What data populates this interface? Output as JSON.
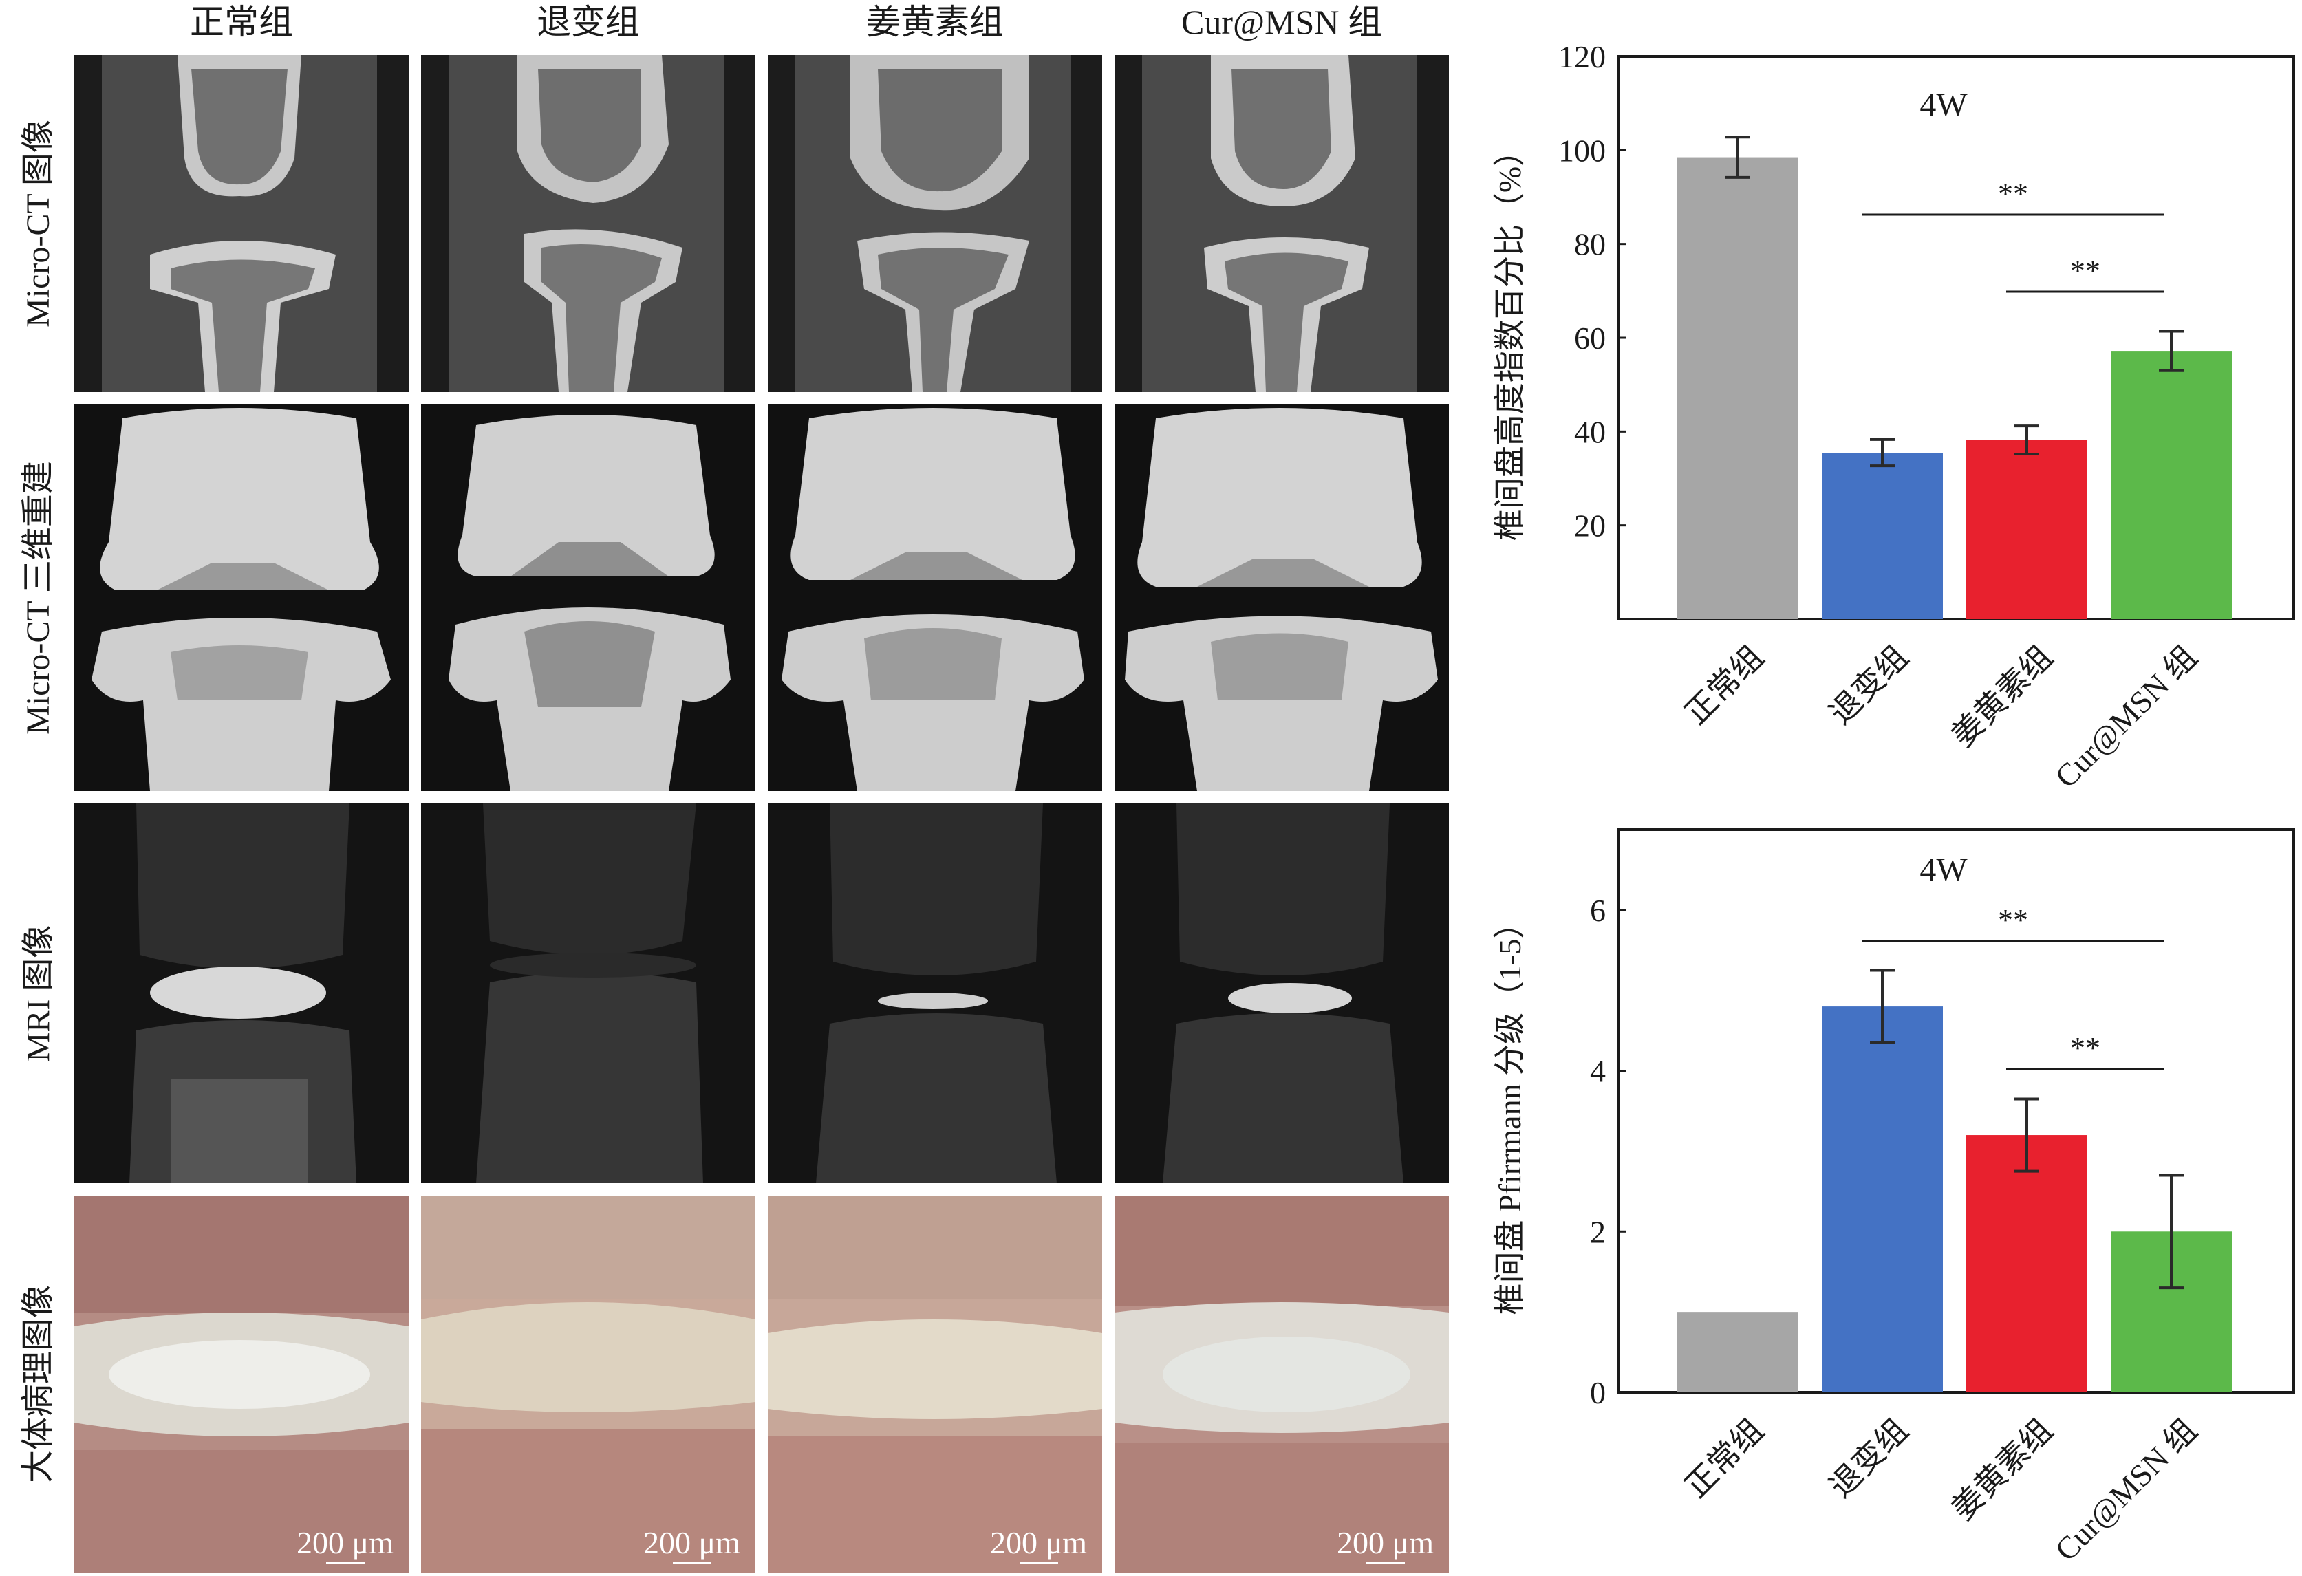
{
  "columns": [
    "正常组",
    "退变组",
    "姜黄素组",
    "Cur@MSN 组"
  ],
  "rows": [
    "Micro-CT 图像",
    "Micro-CT 三维重建",
    "MRI 图像",
    "大体病理图像"
  ],
  "scale_bar_label": "200 μm",
  "colors": {
    "normal": "#a6a6a6",
    "degeneration": "#4472c4",
    "curcumin": "#e8212e",
    "cur_msn": "#5cb94a"
  },
  "chart_data": [
    {
      "type": "bar",
      "title": "4W",
      "categories": [
        "正常组",
        "退变组",
        "姜黄素组",
        "Cur@MSN 组"
      ],
      "values": [
        98.5,
        35.5,
        38.2,
        57.2
      ],
      "errors": [
        4.3,
        2.8,
        3.0,
        4.2
      ],
      "ylabel": "椎间盘高度指数百分比（%）",
      "ylim": [
        0,
        120
      ],
      "yticks": [
        "20",
        "40",
        "60",
        "80",
        "100",
        "120"
      ],
      "significance": [
        {
          "from": "退变组",
          "to": "Cur@MSN 组",
          "label": "**"
        },
        {
          "from": "姜黄素组",
          "to": "Cur@MSN 组",
          "label": "**"
        }
      ]
    },
    {
      "type": "bar",
      "title": "4W",
      "categories": [
        "正常组",
        "退变组",
        "姜黄素组",
        "Cur@MSN 组"
      ],
      "values": [
        1.0,
        4.8,
        3.2,
        2.0
      ],
      "errors": [
        0,
        0.45,
        0.45,
        0.7
      ],
      "ylabel": "椎间盘 Pfirrmann 分级（1-5）",
      "ylim": [
        0,
        7
      ],
      "yticks": [
        "0",
        "2",
        "4",
        "6"
      ],
      "significance": [
        {
          "from": "退变组",
          "to": "Cur@MSN 组",
          "label": "**"
        },
        {
          "from": "姜黄素组",
          "to": "Cur@MSN 组",
          "label": "**"
        }
      ]
    }
  ]
}
